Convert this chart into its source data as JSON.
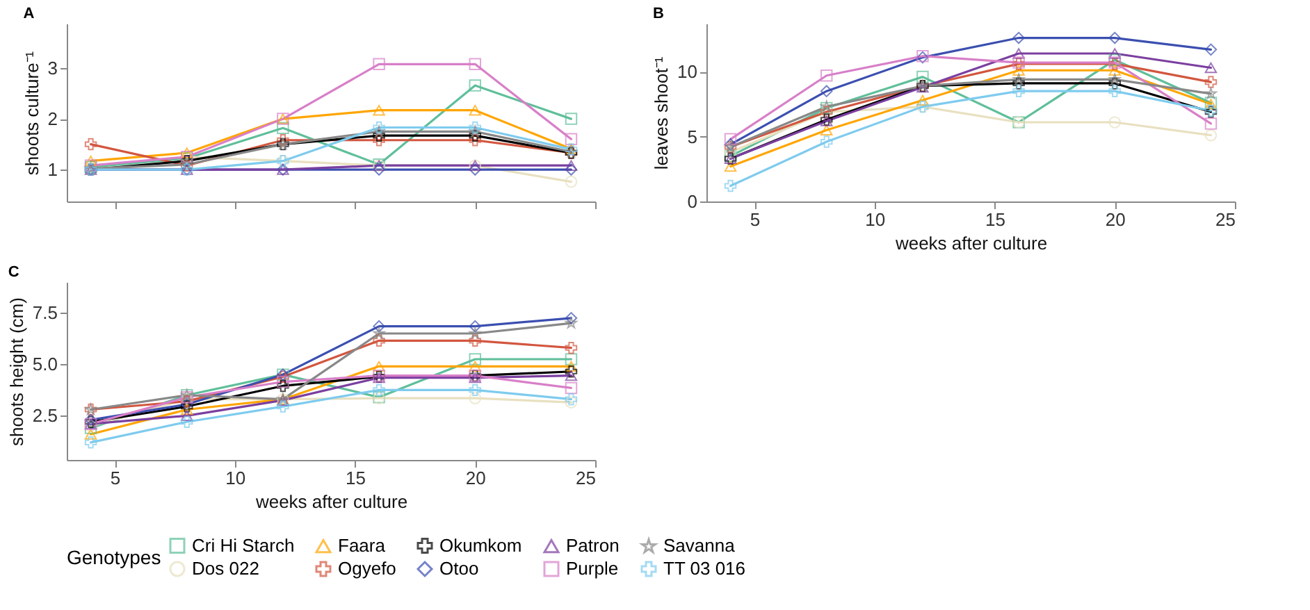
{
  "chart_data": [
    {
      "type": "line",
      "title": "A",
      "ylabel": "shoots culture⁻¹",
      "x": [
        4,
        8,
        12,
        16,
        20,
        24
      ],
      "xlim": [
        3,
        25
      ],
      "xticks": [
        5,
        10,
        15,
        20,
        25
      ],
      "ylim": [
        0.37,
        3.88
      ],
      "yticks": [
        1,
        2,
        3
      ],
      "tick_labels": "y",
      "grid": false,
      "legend": "bottom",
      "legend_title": "Genotypes",
      "line_style": "solid",
      "series": [
        {
          "name": "Cri Hi Starch",
          "color": "#5fbf9a",
          "marker": "square",
          "values": [
            1.05,
            1.22,
            1.82,
            1.1,
            2.66,
            2.0
          ]
        },
        {
          "name": "Dos 022",
          "color": "#e8e0c0",
          "marker": "circle",
          "values": [
            null,
            1.25,
            1.17,
            1.08,
            1.08,
            0.76
          ]
        },
        {
          "name": "Faara",
          "color": "#ffa500",
          "marker": "triangle",
          "values": [
            1.17,
            1.33,
            2.0,
            2.17,
            2.17,
            1.41
          ]
        },
        {
          "name": "Ogyefo",
          "color": "#d2563f",
          "marker": "cross",
          "values": [
            1.5,
            1.08,
            1.58,
            1.58,
            1.58,
            1.33
          ]
        },
        {
          "name": "Okumkom",
          "color": "#000000",
          "marker": "cross",
          "values": [
            1.0,
            1.17,
            1.5,
            1.67,
            1.67,
            1.33
          ]
        },
        {
          "name": "Otoo",
          "color": "#3b4fb0",
          "marker": "diamond",
          "values": [
            1.0,
            1.0,
            1.0,
            1.0,
            1.0,
            1.0
          ]
        },
        {
          "name": "Patron",
          "color": "#7b3fa0",
          "marker": "triangle",
          "values": [
            1.0,
            1.0,
            1.0,
            1.08,
            1.08,
            1.08
          ]
        },
        {
          "name": "Purple",
          "color": "#d87fc8",
          "marker": "square",
          "values": [
            1.08,
            1.25,
            2.0,
            3.08,
            3.08,
            1.6
          ]
        },
        {
          "name": "Savanna",
          "color": "#888888",
          "marker": "star",
          "values": [
            1.02,
            1.1,
            1.5,
            1.75,
            1.75,
            1.35
          ]
        },
        {
          "name": "TT 03 016",
          "color": "#7ecbee",
          "marker": "cross",
          "values": [
            1.0,
            1.0,
            1.17,
            1.83,
            1.83,
            1.4
          ]
        }
      ]
    },
    {
      "type": "line",
      "title": "B",
      "xlabel": "weeks after culture",
      "ylabel": "leaves shoot⁻¹",
      "x": [
        4,
        8,
        12,
        16,
        20,
        24
      ],
      "xlim": [
        3,
        25
      ],
      "xticks": [
        5,
        10,
        15,
        20,
        25
      ],
      "ylim": [
        0,
        13.7
      ],
      "yticks": [
        0,
        5,
        10
      ],
      "grid": false,
      "legend": "bottom",
      "line_style": "solid",
      "series": [
        {
          "name": "Cri Hi Starch",
          "color": "#5fbf9a",
          "marker": "square",
          "values": [
            3.5,
            7.2,
            9.6,
            6.1,
            10.9,
            7.6
          ]
        },
        {
          "name": "Dos 022",
          "color": "#e8e0c0",
          "marker": "circle",
          "values": [
            3.8,
            6.9,
            7.3,
            6.1,
            6.1,
            5.1
          ]
        },
        {
          "name": "Faara",
          "color": "#ffa500",
          "marker": "triangle",
          "values": [
            2.7,
            5.5,
            7.8,
            10.1,
            10.1,
            7.5
          ]
        },
        {
          "name": "Ogyefo",
          "color": "#d2563f",
          "marker": "cross",
          "values": [
            4.2,
            6.9,
            8.9,
            10.6,
            10.6,
            9.2
          ]
        },
        {
          "name": "Okumkom",
          "color": "#000000",
          "marker": "cross",
          "values": [
            3.3,
            6.3,
            8.9,
            9.1,
            9.1,
            6.9
          ]
        },
        {
          "name": "Otoo",
          "color": "#3b4fb0",
          "marker": "diamond",
          "values": [
            4.4,
            8.5,
            11.1,
            12.6,
            12.6,
            11.7
          ]
        },
        {
          "name": "Patron",
          "color": "#7b3fa0",
          "marker": "triangle",
          "values": [
            3.3,
            6.2,
            8.8,
            11.4,
            11.4,
            10.3
          ]
        },
        {
          "name": "Purple",
          "color": "#d87fc8",
          "marker": "square",
          "values": [
            4.8,
            9.7,
            11.2,
            10.7,
            10.7,
            6.0
          ]
        },
        {
          "name": "Savanna",
          "color": "#888888",
          "marker": "star",
          "values": [
            4.2,
            7.3,
            8.9,
            9.4,
            9.4,
            8.3
          ]
        },
        {
          "name": "TT 03 016",
          "color": "#7ecbee",
          "marker": "cross",
          "values": [
            1.2,
            4.6,
            7.3,
            8.5,
            8.5,
            7.0
          ]
        }
      ]
    },
    {
      "type": "line",
      "title": "C",
      "xlabel": "weeks after culture",
      "ylabel": "shoots height (cm)",
      "x": [
        4,
        8,
        12,
        16,
        20,
        24
      ],
      "xlim": [
        3,
        25
      ],
      "xticks": [
        5,
        10,
        15,
        20,
        25
      ],
      "ylim": [
        0.35,
        9.0
      ],
      "yticks": [
        {
          "value": 2.5,
          "label": "2.5"
        },
        {
          "value": 5,
          "label": "5.0"
        },
        {
          "value": 7.5,
          "label": "7.5"
        }
      ],
      "grid": false,
      "legend": "bottom",
      "line_style": "solid",
      "series": [
        {
          "name": "Cri Hi Starch",
          "color": "#5fbf9a",
          "marker": "square",
          "values": [
            1.9,
            3.5,
            4.5,
            3.4,
            5.25,
            5.25
          ]
        },
        {
          "name": "Dos 022",
          "color": "#e8e0c0",
          "marker": "circle",
          "values": [
            2.0,
            3.3,
            3.3,
            3.35,
            3.35,
            3.15
          ]
        },
        {
          "name": "Faara",
          "color": "#ffa500",
          "marker": "triangle",
          "values": [
            1.6,
            2.8,
            3.3,
            4.9,
            4.9,
            4.9
          ]
        },
        {
          "name": "Ogyefo",
          "color": "#d2563f",
          "marker": "cross",
          "values": [
            2.8,
            3.2,
            4.4,
            6.15,
            6.15,
            5.8
          ]
        },
        {
          "name": "Okumkom",
          "color": "#000000",
          "marker": "cross",
          "values": [
            2.2,
            2.95,
            3.95,
            4.4,
            4.45,
            4.65
          ]
        },
        {
          "name": "Otoo",
          "color": "#3b4fb0",
          "marker": "diamond",
          "values": [
            2.3,
            3.05,
            4.5,
            6.85,
            6.85,
            7.25
          ]
        },
        {
          "name": "Patron",
          "color": "#7b3fa0",
          "marker": "triangle",
          "values": [
            2.1,
            2.5,
            3.25,
            4.35,
            4.35,
            4.45
          ]
        },
        {
          "name": "Purple",
          "color": "#d87fc8",
          "marker": "square",
          "values": [
            2.1,
            3.4,
            4.15,
            4.45,
            4.45,
            3.85
          ]
        },
        {
          "name": "Savanna",
          "color": "#888888",
          "marker": "star",
          "values": [
            2.8,
            3.5,
            3.3,
            6.5,
            6.5,
            7.0
          ]
        },
        {
          "name": "TT 03 016",
          "color": "#7ecbee",
          "marker": "cross",
          "values": [
            1.2,
            2.2,
            2.95,
            3.75,
            3.75,
            3.3
          ]
        }
      ]
    }
  ]
}
